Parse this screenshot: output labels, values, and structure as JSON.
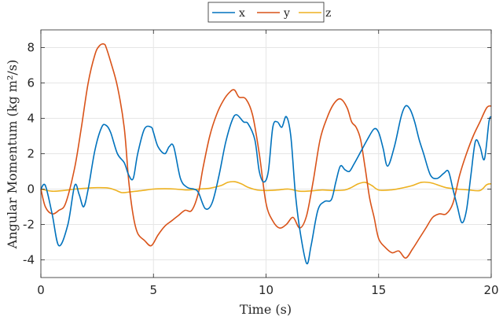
{
  "chart_data": {
    "type": "line",
    "xlabel": "Time (s)",
    "ylabel": "Angular Momentum (kg m²/s)",
    "xlim": [
      0,
      20
    ],
    "ylim": [
      -5,
      9
    ],
    "xticks": [
      0,
      5,
      10,
      15,
      20
    ],
    "yticks": [
      -4,
      -2,
      0,
      2,
      4,
      6,
      8
    ],
    "grid": true,
    "legend": "top-center",
    "series": [
      {
        "name": "x",
        "color": "#0072BD",
        "x": [
          0,
          0.2,
          0.5,
          0.8,
          1.2,
          1.5,
          1.7,
          1.9,
          2.1,
          2.4,
          2.7,
          2.9,
          3.1,
          3.4,
          3.7,
          3.9,
          4.1,
          4.3,
          4.6,
          4.9,
          5.0,
          5.2,
          5.5,
          5.7,
          5.9,
          6.2,
          6.5,
          6.8,
          7.0,
          7.3,
          7.6,
          7.9,
          8.2,
          8.5,
          8.7,
          9.0,
          9.2,
          9.5,
          9.7,
          9.9,
          10.1,
          10.3,
          10.5,
          10.7,
          10.9,
          11.1,
          11.3,
          11.5,
          11.8,
          12.0,
          12.3,
          12.6,
          12.9,
          13.1,
          13.3,
          13.5,
          13.7,
          13.9,
          14.2,
          14.5,
          14.8,
          15.0,
          15.2,
          15.4,
          15.7,
          16.0,
          16.2,
          16.4,
          16.6,
          16.8,
          17.0,
          17.3,
          17.6,
          17.9,
          18.1,
          18.3,
          18.5,
          18.7,
          18.9,
          19.1,
          19.3,
          19.5,
          19.7,
          19.9,
          20.0
        ],
        "y": [
          0.0,
          0.2,
          -1.4,
          -3.2,
          -2.0,
          0.2,
          -0.3,
          -1.0,
          0.0,
          2.2,
          3.5,
          3.6,
          3.2,
          2.0,
          1.5,
          0.8,
          0.6,
          2.0,
          3.4,
          3.5,
          3.2,
          2.4,
          2.0,
          2.4,
          2.4,
          0.6,
          0.1,
          0.0,
          -0.2,
          -1.1,
          -0.8,
          0.7,
          2.6,
          3.9,
          4.2,
          3.8,
          3.7,
          2.8,
          1.0,
          0.4,
          1.0,
          3.5,
          3.8,
          3.5,
          4.1,
          3.0,
          -0.2,
          -2.3,
          -4.2,
          -3.2,
          -1.2,
          -0.7,
          -0.6,
          0.4,
          1.3,
          1.1,
          1.0,
          1.4,
          2.1,
          2.8,
          3.4,
          3.2,
          2.3,
          1.3,
          2.4,
          4.1,
          4.7,
          4.5,
          3.8,
          2.8,
          2.0,
          0.8,
          0.6,
          0.9,
          1.0,
          0.0,
          -1.0,
          -1.9,
          -1.2,
          0.8,
          2.7,
          2.4,
          1.7,
          3.8,
          4.1
        ]
      },
      {
        "name": "y",
        "color": "#D95319",
        "x": [
          0,
          0.2,
          0.5,
          0.8,
          1.1,
          1.5,
          1.8,
          2.1,
          2.4,
          2.6,
          2.8,
          2.9,
          3.1,
          3.4,
          3.7,
          3.9,
          4.1,
          4.3,
          4.6,
          4.9,
          5.2,
          5.5,
          5.8,
          6.1,
          6.4,
          6.7,
          7.0,
          7.2,
          7.5,
          7.8,
          8.1,
          8.4,
          8.6,
          8.8,
          9.1,
          9.4,
          9.7,
          10.0,
          10.3,
          10.6,
          10.9,
          11.2,
          11.5,
          11.8,
          12.1,
          12.4,
          12.7,
          13.0,
          13.3,
          13.6,
          13.8,
          14.0,
          14.2,
          14.4,
          14.6,
          14.8,
          15.0,
          15.3,
          15.6,
          15.9,
          16.2,
          16.5,
          16.8,
          17.1,
          17.4,
          17.7,
          18.0,
          18.3,
          18.6,
          18.9,
          19.2,
          19.5,
          19.8,
          20.0
        ],
        "y": [
          0.0,
          -1.0,
          -1.4,
          -1.2,
          -0.8,
          1.2,
          3.5,
          6.0,
          7.6,
          8.1,
          8.2,
          8.0,
          7.2,
          5.8,
          3.5,
          0.5,
          -1.5,
          -2.5,
          -2.9,
          -3.2,
          -2.6,
          -2.1,
          -1.8,
          -1.5,
          -1.2,
          -1.2,
          -0.2,
          1.2,
          3.0,
          4.2,
          5.0,
          5.5,
          5.6,
          5.2,
          5.1,
          4.2,
          2.0,
          -0.8,
          -1.8,
          -2.2,
          -2.0,
          -1.6,
          -2.2,
          -1.5,
          0.5,
          2.8,
          4.0,
          4.8,
          5.1,
          4.6,
          3.8,
          3.5,
          2.8,
          1.2,
          -0.5,
          -1.6,
          -2.8,
          -3.3,
          -3.6,
          -3.5,
          -3.9,
          -3.4,
          -2.8,
          -2.2,
          -1.6,
          -1.4,
          -1.4,
          -0.8,
          0.8,
          2.0,
          3.0,
          3.8,
          4.6,
          4.7
        ]
      },
      {
        "name": "z",
        "color": "#EDB120",
        "x": [
          0,
          0.5,
          1.0,
          1.5,
          2.0,
          2.5,
          3.0,
          3.3,
          3.6,
          4.0,
          4.5,
          5.0,
          5.5,
          6.0,
          6.5,
          7.0,
          7.5,
          8.0,
          8.3,
          8.6,
          8.9,
          9.2,
          9.6,
          10.0,
          10.5,
          11.0,
          11.5,
          12.0,
          12.5,
          13.0,
          13.5,
          13.8,
          14.1,
          14.4,
          14.7,
          15.0,
          15.5,
          16.0,
          16.5,
          16.9,
          17.3,
          17.7,
          18.0,
          18.5,
          19.0,
          19.5,
          19.8,
          20.0
        ],
        "y": [
          0.0,
          -0.12,
          -0.08,
          0.0,
          0.05,
          0.08,
          0.06,
          -0.05,
          -0.2,
          -0.15,
          -0.08,
          0.0,
          0.02,
          0.0,
          -0.05,
          0.0,
          0.05,
          0.2,
          0.38,
          0.42,
          0.3,
          0.1,
          -0.05,
          -0.08,
          -0.05,
          0.0,
          -0.12,
          -0.1,
          -0.05,
          -0.08,
          -0.05,
          0.1,
          0.3,
          0.38,
          0.2,
          -0.05,
          -0.05,
          0.05,
          0.2,
          0.38,
          0.36,
          0.2,
          0.08,
          0.0,
          -0.05,
          -0.08,
          0.25,
          0.3
        ]
      }
    ]
  }
}
